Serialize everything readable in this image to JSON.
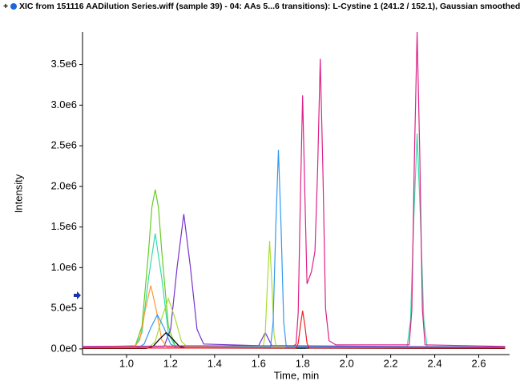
{
  "chart_data": {
    "type": "line",
    "title": "XIC from 151116 AADilution Series.wiff (sample 39) - 04: AAs 5...6 transitions): L-Cystine 1 (241.2 / 152.1), Gaussian smoothed",
    "x_label": "Time, min",
    "y_label": "Intensity",
    "xlim": [
      0.8,
      2.74
    ],
    "ylim": [
      -70000,
      3900000
    ],
    "xticks": [
      {
        "value": 1,
        "label": "1.0"
      },
      1.2,
      1.4,
      1.6,
      1.8,
      {
        "value": 2,
        "label": "2.0"
      },
      2.2,
      2.4,
      2.6
    ],
    "yticks": [
      {
        "value": 0,
        "label": "0.0e0"
      },
      {
        "value": 500000,
        "label": "5.0e5"
      },
      {
        "value": 1000000,
        "label": "1.0e6"
      },
      {
        "value": 1500000,
        "label": "1.5e6"
      },
      {
        "value": 2000000,
        "label": "2.0e6"
      },
      {
        "value": 2500000,
        "label": "2.5e6"
      },
      {
        "value": 3000000,
        "label": "3.0e6"
      },
      {
        "value": 3500000,
        "label": "3.5e6"
      }
    ],
    "series": [
      {
        "color": "#66cc22",
        "x": [
          0.8,
          1.04,
          1.07,
          1.1,
          1.115,
          1.13,
          1.145,
          1.16,
          1.19,
          1.22,
          2.72
        ],
        "values": [
          20000,
          40000,
          280000,
          1200000,
          1740000,
          1960000,
          1740000,
          1200000,
          280000,
          40000,
          20000
        ]
      },
      {
        "color": "#33ddaa",
        "x": [
          0.8,
          1.04,
          1.07,
          1.1,
          1.13,
          1.16,
          1.19,
          1.22,
          2.275,
          2.29,
          2.305,
          2.32,
          2.335,
          2.35,
          2.365,
          2.72
        ],
        "values": [
          20000,
          30000,
          200000,
          870000,
          1420000,
          870000,
          200000,
          30000,
          30000,
          360000,
          1620000,
          2650000,
          1620000,
          360000,
          30000,
          20000
        ]
      },
      {
        "color": "#7733cc",
        "x": [
          0.8,
          1.17,
          1.2,
          1.23,
          1.26,
          1.29,
          1.32,
          1.35,
          1.6,
          1.63,
          1.66,
          2.72
        ],
        "values": [
          20000,
          30000,
          240000,
          1010000,
          1660000,
          1010000,
          240000,
          60000,
          40000,
          200000,
          40000,
          20000
        ]
      },
      {
        "color": "#ff9933",
        "x": [
          0.8,
          1.035,
          1.06,
          1.085,
          1.11,
          1.135,
          1.16,
          1.185,
          2.72
        ],
        "values": [
          10000,
          20000,
          110000,
          480000,
          780000,
          480000,
          110000,
          20000,
          10000
        ]
      },
      {
        "color": "#aadd33",
        "x": [
          0.8,
          1.1,
          1.13,
          1.16,
          1.19,
          1.22,
          1.25,
          1.28,
          1.62,
          1.63,
          1.64,
          1.65,
          1.66,
          1.67,
          1.68,
          2.72
        ],
        "values": [
          10000,
          15000,
          90000,
          380000,
          620000,
          380000,
          90000,
          15000,
          15000,
          180000,
          810000,
          1330000,
          810000,
          180000,
          15000,
          10000
        ]
      },
      {
        "color": "#3399ee",
        "x": [
          0.8,
          1.05,
          1.08,
          1.11,
          1.14,
          1.17,
          1.2,
          1.23,
          1.654,
          1.666,
          1.678,
          1.69,
          1.702,
          1.714,
          1.726,
          2.72
        ],
        "values": [
          5000,
          10000,
          60000,
          260000,
          420000,
          260000,
          60000,
          10000,
          20000,
          330000,
          1500000,
          2450000,
          1500000,
          330000,
          20000,
          10000
        ]
      },
      {
        "color": "#000000",
        "x": [
          0.8,
          1.09,
          1.12,
          1.15,
          1.18,
          1.21,
          1.24,
          1.27,
          2.72
        ],
        "values": [
          5000,
          5000,
          30000,
          120000,
          200000,
          120000,
          30000,
          10000,
          5000
        ]
      },
      {
        "color": "#dd2288",
        "x": [
          0.8,
          1.76,
          1.77,
          1.78,
          1.79,
          1.8,
          1.81,
          1.82,
          1.84,
          1.856,
          1.868,
          1.88,
          1.892,
          1.904,
          1.92,
          1.95,
          2.284,
          2.296,
          2.308,
          2.32,
          2.332,
          2.344,
          2.356,
          2.72
        ],
        "values": [
          30000,
          40000,
          60000,
          450000,
          1900000,
          3120000,
          1900000,
          800000,
          950000,
          1200000,
          2200000,
          3570000,
          2200000,
          500000,
          100000,
          50000,
          50000,
          480000,
          2400000,
          3900000,
          2400000,
          480000,
          50000,
          30000
        ]
      },
      {
        "color": "#ee2222",
        "x": [
          0.8,
          1.77,
          1.78,
          1.79,
          1.8,
          1.81,
          1.82,
          1.83,
          2.72
        ],
        "values": [
          10000,
          10000,
          70000,
          290000,
          470000,
          290000,
          70000,
          10000,
          10000
        ]
      }
    ]
  }
}
